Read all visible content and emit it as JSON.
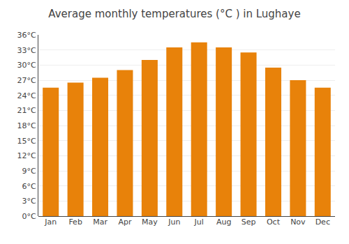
{
  "chart_data": {
    "type": "bar",
    "title": "Average monthly temperatures (°C ) in Lughaye",
    "categories": [
      "Jan",
      "Feb",
      "Mar",
      "Apr",
      "May",
      "Jun",
      "Jul",
      "Aug",
      "Sep",
      "Oct",
      "Nov",
      "Dec"
    ],
    "values": [
      25.5,
      26.5,
      27.5,
      29.0,
      31.0,
      33.5,
      34.5,
      33.5,
      32.5,
      29.5,
      27.0,
      25.5
    ],
    "color": "#E8820A",
    "ylim": [
      0,
      36
    ],
    "yticks": [
      {
        "value": 0,
        "label": "0°C"
      },
      {
        "value": 3,
        "label": "3°C"
      },
      {
        "value": 6,
        "label": "6°C"
      },
      {
        "value": 9,
        "label": "9°C"
      },
      {
        "value": 12,
        "label": "12°C"
      },
      {
        "value": 15,
        "label": "15°C"
      },
      {
        "value": 18,
        "label": "18°C"
      },
      {
        "value": 21,
        "label": "21°C"
      },
      {
        "value": 24,
        "label": "24°C"
      },
      {
        "value": 27,
        "label": "27°C"
      },
      {
        "value": 30,
        "label": "30°C"
      },
      {
        "value": 33,
        "label": "33°C"
      },
      {
        "value": 36,
        "label": "36°C"
      }
    ],
    "grid": true
  }
}
